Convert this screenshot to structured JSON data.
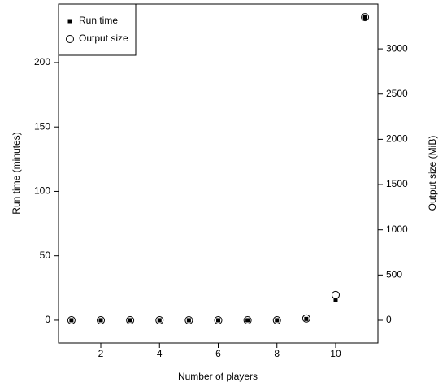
{
  "chart_data": {
    "type": "scatter",
    "x_label": "Number of players",
    "y_label": "Run time (minutes)",
    "y2_label": "Output size (MiB)",
    "x": [
      1,
      2,
      3,
      4,
      5,
      6,
      7,
      8,
      9,
      10,
      11
    ],
    "series": [
      {
        "name": "Run time",
        "color": "#000000",
        "marker": "square",
        "values": [
          0,
          0,
          0,
          0,
          0,
          0,
          0,
          0,
          1,
          16,
          235
        ]
      },
      {
        "name": "Output size",
        "color": "#000000",
        "marker": "circle",
        "axis": "y2",
        "values": [
          0,
          0,
          0,
          0,
          0,
          0,
          0,
          0,
          20,
          280,
          3350
        ]
      }
    ],
    "xlim": [
      0.56,
      11.44
    ],
    "xticks": [
      2,
      4,
      6,
      8,
      10
    ],
    "ylim": [
      -17.7,
      245.4
    ],
    "yticks": [
      0,
      50,
      100,
      150,
      200
    ],
    "y2lim": [
      -251.6,
      3495
    ],
    "y2ticks": [
      0,
      500,
      1000,
      1500,
      2000,
      2500,
      3000
    ],
    "legend": "top-left"
  }
}
